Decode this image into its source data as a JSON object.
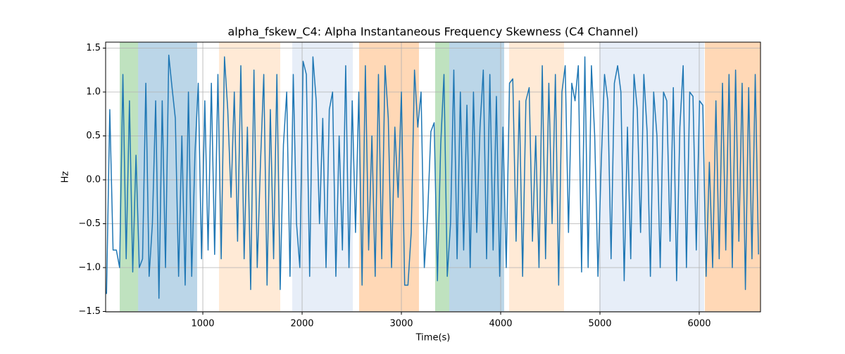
{
  "chart_data": {
    "type": "line",
    "title": "alpha_fskew_C4: Alpha Instantaneous Frequency Skewness (C4 Channel)",
    "x_label": "Time(s)",
    "y_label": "Hz",
    "xlim": [
      21,
      6617
    ],
    "ylim": [
      -1.504,
      1.568
    ],
    "xticks": [
      1000,
      2000,
      3000,
      4000,
      5000,
      6000
    ],
    "yticks": [
      {
        "value": -1.5,
        "label": "−1.5"
      },
      {
        "value": -1.0,
        "label": "−1.0"
      },
      {
        "value": -0.5,
        "label": "−0.5"
      },
      {
        "value": 0.0,
        "label": "0.0"
      },
      {
        "value": 0.5,
        "label": "0.5"
      },
      {
        "value": 1.0,
        "label": "1.0"
      },
      {
        "value": 1.5,
        "label": "1.5"
      }
    ],
    "grid": true,
    "spans": [
      {
        "start": 163,
        "end": 348,
        "color": "#2ca02c"
      },
      {
        "start": 348,
        "end": 943,
        "color": "#1f77b4"
      },
      {
        "start": 1163,
        "end": 1780,
        "color": "#ffbb78"
      },
      {
        "start": 1901,
        "end": 2511,
        "color": "#aec7e8"
      },
      {
        "start": 2574,
        "end": 3177,
        "color": "#ff7f0e"
      },
      {
        "start": 3340,
        "end": 3482,
        "color": "#2ca02c"
      },
      {
        "start": 3482,
        "end": 4035,
        "color": "#1f77b4"
      },
      {
        "start": 4085,
        "end": 4638,
        "color": "#ffbb78"
      },
      {
        "start": 4993,
        "end": 6050,
        "color": "#aec7e8"
      },
      {
        "start": 6057,
        "end": 6617,
        "color": "#ff7f0e"
      }
    ],
    "x": [
      30,
      63,
      96,
      129,
      162,
      195,
      228,
      261,
      294,
      327,
      360,
      393,
      426,
      459,
      492,
      525,
      558,
      591,
      624,
      657,
      690,
      723,
      756,
      789,
      822,
      855,
      888,
      921,
      954,
      987,
      1020,
      1053,
      1086,
      1119,
      1152,
      1185,
      1218,
      1251,
      1284,
      1317,
      1350,
      1383,
      1416,
      1449,
      1482,
      1515,
      1548,
      1581,
      1614,
      1647,
      1680,
      1713,
      1746,
      1779,
      1812,
      1845,
      1878,
      1911,
      1944,
      1977,
      2010,
      2043,
      2076,
      2109,
      2142,
      2175,
      2208,
      2241,
      2274,
      2307,
      2340,
      2373,
      2406,
      2439,
      2472,
      2505,
      2538,
      2571,
      2604,
      2637,
      2670,
      2703,
      2736,
      2769,
      2802,
      2835,
      2868,
      2901,
      2934,
      2967,
      3000,
      3033,
      3066,
      3099,
      3132,
      3165,
      3198,
      3231,
      3264,
      3297,
      3330,
      3363,
      3396,
      3429,
      3462,
      3495,
      3528,
      3561,
      3594,
      3627,
      3660,
      3693,
      3726,
      3759,
      3792,
      3825,
      3858,
      3891,
      3924,
      3957,
      3990,
      4023,
      4056,
      4089,
      4122,
      4155,
      4188,
      4221,
      4254,
      4287,
      4320,
      4353,
      4386,
      4419,
      4452,
      4485,
      4518,
      4551,
      4584,
      4617,
      4650,
      4683,
      4716,
      4749,
      4782,
      4815,
      4848,
      4881,
      4914,
      4947,
      4980,
      5013,
      5046,
      5079,
      5112,
      5145,
      5178,
      5211,
      5244,
      5277,
      5310,
      5343,
      5376,
      5409,
      5442,
      5475,
      5508,
      5541,
      5574,
      5607,
      5640,
      5673,
      5706,
      5739,
      5772,
      5805,
      5838,
      5871,
      5904,
      5937,
      5970,
      6003,
      6036,
      6069,
      6102,
      6135,
      6168,
      6201,
      6234,
      6267,
      6300,
      6333,
      6366,
      6399,
      6432,
      6465,
      6498,
      6531,
      6564,
      6597
    ],
    "series": [
      {
        "color": "#1f77b4",
        "values": [
          -1.3,
          0.8,
          -0.8,
          -0.8,
          -1.0,
          1.2,
          -0.9,
          0.9,
          -1.05,
          0.28,
          -1.0,
          -0.9,
          1.1,
          -1.1,
          -0.5,
          0.9,
          -1.35,
          0.9,
          -1.0,
          1.42,
          1.05,
          0.7,
          -1.1,
          0.5,
          -1.2,
          1.0,
          -1.1,
          0.3,
          1.1,
          -0.9,
          0.9,
          -0.8,
          1.1,
          -0.85,
          1.2,
          -0.9,
          1.4,
          0.8,
          -0.2,
          1.0,
          -0.7,
          1.3,
          -0.9,
          0.6,
          -1.25,
          1.25,
          -1.0,
          0.2,
          1.2,
          -1.2,
          0.8,
          -0.9,
          1.2,
          -1.25,
          0.4,
          1.0,
          -1.1,
          1.2,
          -0.5,
          -1.0,
          1.35,
          1.2,
          -1.1,
          1.4,
          0.9,
          -0.5,
          0.7,
          -1.0,
          0.8,
          1.0,
          -1.1,
          0.5,
          -0.8,
          1.3,
          -1.0,
          0.9,
          -0.6,
          1.0,
          -1.2,
          1.3,
          -0.8,
          0.5,
          -1.1,
          1.2,
          -0.9,
          1.3,
          0.7,
          -1.0,
          0.6,
          -0.2,
          1.0,
          -1.2,
          -1.2,
          -0.6,
          1.25,
          0.6,
          1.0,
          -1.0,
          -0.4,
          0.55,
          0.65,
          -1.15,
          0.4,
          1.2,
          -1.1,
          -0.5,
          1.25,
          -0.9,
          1.0,
          -0.8,
          0.85,
          -1.0,
          1.0,
          -0.6,
          0.6,
          1.25,
          -0.9,
          1.2,
          -0.8,
          0.95,
          -1.1,
          0.6,
          -1.0,
          1.1,
          1.15,
          -0.7,
          0.9,
          -1.1,
          0.9,
          1.05,
          -0.7,
          0.5,
          -1.0,
          1.3,
          -0.9,
          1.1,
          -0.5,
          1.2,
          -1.2,
          1.0,
          1.3,
          -0.6,
          1.1,
          0.9,
          1.3,
          -1.05,
          1.4,
          -1.0,
          1.3,
          0.5,
          -1.1,
          0.2,
          1.2,
          0.9,
          -0.9,
          1.1,
          1.3,
          1.0,
          -1.15,
          0.6,
          -0.9,
          1.2,
          0.8,
          -0.6,
          1.2,
          0.55,
          -1.1,
          1.0,
          0.5,
          -1.0,
          1.0,
          0.9,
          -0.7,
          1.05,
          -1.15,
          0.6,
          1.3,
          -1.0,
          1.0,
          0.95,
          -0.8,
          0.9,
          0.85,
          -1.1,
          0.2,
          -1.0,
          0.9,
          -0.9,
          1.1,
          -0.8,
          1.2,
          -1.0,
          1.25,
          -0.7,
          1.1,
          -1.25,
          1.05,
          -0.9,
          1.2,
          -0.85
        ]
      }
    ]
  }
}
